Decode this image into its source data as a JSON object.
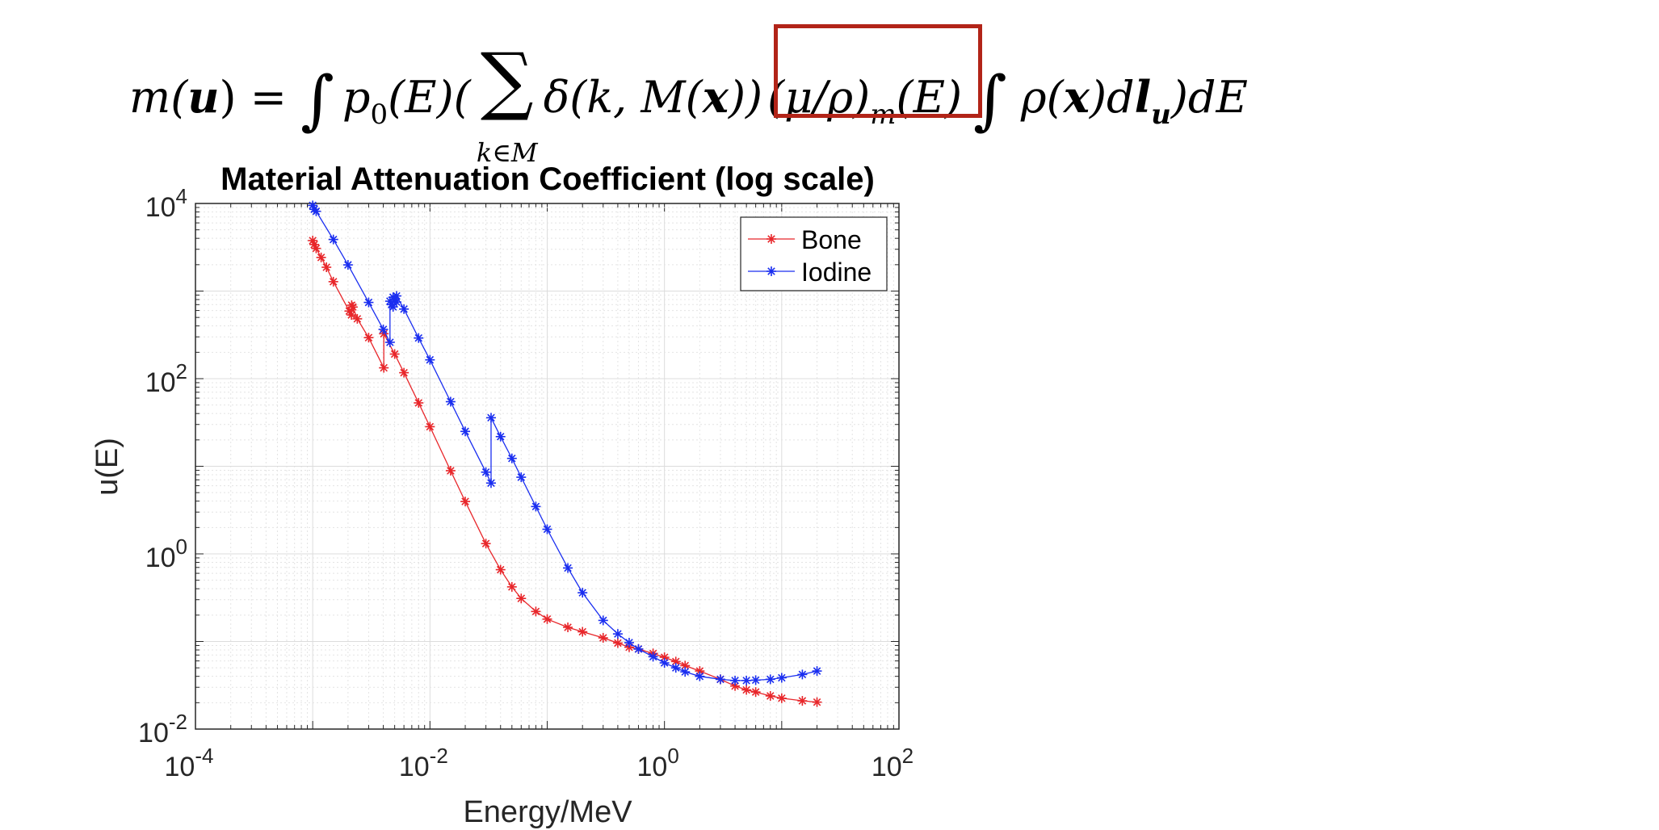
{
  "equation": {
    "p1": "m(",
    "p2": "u",
    "p3": ") = ",
    "int1": "∫",
    "p4": "p",
    "p4sub": "0",
    "p5": "(E)(",
    "sum": "∑",
    "sum_limit": "k∈M",
    "p6": "δ(k, M(",
    "p7": "x",
    "p8": "))",
    "h1": "(μ/ρ)",
    "h1sub": "m",
    "h2": "(E)",
    "int2": "∫",
    "p9": " ρ(",
    "p10": "x",
    "p11": ")d",
    "p12": "l",
    "p12sub": "u",
    "p13": ")dE",
    "highlight_color": "#b22418"
  },
  "chart_data": {
    "type": "line",
    "title": "Material Attenuation Coefficient (log scale)",
    "xlabel": "Energy/MeV",
    "ylabel": "u(E)",
    "xscale": "log",
    "yscale": "log",
    "xlim": [
      0.0001,
      100
    ],
    "ylim": [
      0.01,
      10000
    ],
    "xticks": [
      {
        "base": "10",
        "exp": "-4"
      },
      {
        "base": "10",
        "exp": "-2"
      },
      {
        "base": "10",
        "exp": "0"
      },
      {
        "base": "10",
        "exp": "2"
      }
    ],
    "yticks": [
      {
        "base": "10",
        "exp": "-2"
      },
      {
        "base": "10",
        "exp": "0"
      },
      {
        "base": "10",
        "exp": "2"
      },
      {
        "base": "10",
        "exp": "4"
      }
    ],
    "grid": true,
    "minor_grid": true,
    "legend_position": "top-right",
    "marker": "asterisk",
    "series": [
      {
        "name": "Bone",
        "color": "#e8262a",
        "points": [
          [
            0.001,
            3770
          ],
          [
            0.00103,
            3400
          ],
          [
            0.00107,
            3070
          ],
          [
            0.00118,
            2420
          ],
          [
            0.00131,
            1870
          ],
          [
            0.0015,
            1280
          ],
          [
            0.00205,
            591
          ],
          [
            0.00214,
            534
          ],
          [
            0.00215,
            690
          ],
          [
            0.0022,
            657
          ],
          [
            0.0024,
            482
          ],
          [
            0.003,
            294
          ],
          [
            0.00404,
            133
          ],
          [
            0.00404,
            326
          ],
          [
            0.005,
            191
          ],
          [
            0.006,
            117
          ],
          [
            0.008,
            52.9
          ],
          [
            0.01,
            28.3
          ],
          [
            0.015,
            8.9
          ],
          [
            0.02,
            3.96
          ],
          [
            0.03,
            1.31
          ],
          [
            0.04,
            0.66
          ],
          [
            0.05,
            0.42
          ],
          [
            0.06,
            0.31
          ],
          [
            0.08,
            0.22
          ],
          [
            0.1,
            0.18
          ],
          [
            0.15,
            0.145
          ],
          [
            0.2,
            0.129
          ],
          [
            0.3,
            0.11
          ],
          [
            0.4,
            0.096
          ],
          [
            0.5,
            0.086
          ],
          [
            0.6,
            0.082
          ],
          [
            0.8,
            0.073
          ],
          [
            1,
            0.066
          ],
          [
            1.25,
            0.059
          ],
          [
            1.5,
            0.053
          ],
          [
            2,
            0.046
          ],
          [
            3,
            0.037
          ],
          [
            4,
            0.031
          ],
          [
            5,
            0.028
          ],
          [
            6,
            0.0265
          ],
          [
            8,
            0.0239
          ],
          [
            10,
            0.0225
          ],
          [
            15,
            0.021
          ],
          [
            20,
            0.0203
          ]
        ]
      },
      {
        "name": "Iodine",
        "color": "#1a2ef0",
        "points": [
          [
            0.001,
            9500
          ],
          [
            0.00103,
            8570
          ],
          [
            0.00107,
            8140
          ],
          [
            0.0015,
            3880
          ],
          [
            0.002,
            1990
          ],
          [
            0.003,
            742
          ],
          [
            0.004,
            365
          ],
          [
            0.00456,
            260
          ],
          [
            0.00456,
            766
          ],
          [
            0.0047,
            700
          ],
          [
            0.00485,
            660
          ],
          [
            0.00485,
            850
          ],
          [
            0.005,
            800
          ],
          [
            0.00519,
            750
          ],
          [
            0.00519,
            880
          ],
          [
            0.006,
            623
          ],
          [
            0.008,
            291
          ],
          [
            0.01,
            164
          ],
          [
            0.015,
            54.6
          ],
          [
            0.02,
            25
          ],
          [
            0.03,
            8.57
          ],
          [
            0.0332,
            6.43
          ],
          [
            0.0332,
            35.8
          ],
          [
            0.04,
            21.8
          ],
          [
            0.05,
            12.3
          ],
          [
            0.06,
            7.5
          ],
          [
            0.08,
            3.47
          ],
          [
            0.1,
            1.91
          ],
          [
            0.15,
            0.69
          ],
          [
            0.2,
            0.36
          ],
          [
            0.3,
            0.174
          ],
          [
            0.4,
            0.122
          ],
          [
            0.5,
            0.097
          ],
          [
            0.6,
            0.082
          ],
          [
            0.8,
            0.067
          ],
          [
            1,
            0.057
          ],
          [
            1.25,
            0.05
          ],
          [
            1.5,
            0.045
          ],
          [
            2,
            0.04
          ],
          [
            3,
            0.037
          ],
          [
            4,
            0.0358
          ],
          [
            5,
            0.0358
          ],
          [
            6,
            0.0362
          ],
          [
            8,
            0.037
          ],
          [
            10,
            0.0385
          ],
          [
            15,
            0.042
          ],
          [
            20,
            0.046
          ]
        ]
      }
    ]
  }
}
